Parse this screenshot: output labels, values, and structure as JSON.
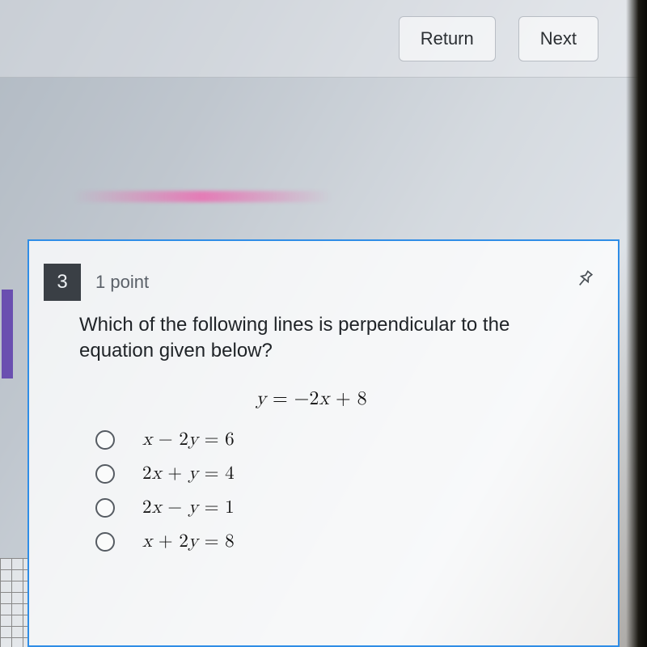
{
  "colors": {
    "card_border": "#2f8de6",
    "qnum_bg": "#3a3f45",
    "qnum_fg": "#eef1f4",
    "text_primary": "#1f2327",
    "text_muted": "#5a6068",
    "radio_border": "#555b62",
    "button_border": "#b8bdc4",
    "button_text": "#2b2f33"
  },
  "topbar": {
    "return_label": "Return",
    "next_label": "Next"
  },
  "question": {
    "number": "3",
    "points_label": "1 point",
    "prompt": "Which of the following lines is perpendicular to the equation given below?",
    "given_equation_html": "<span class='var'>y</span> = −2<span class='var'>x</span> + 8",
    "options": [
      {
        "html": "<span class='var'>x</span> − 2<span class='var'>y</span> = 6"
      },
      {
        "html": "2<span class='var'>x</span> + <span class='var'>y</span> = 4"
      },
      {
        "html": "2<span class='var'>x</span> − <span class='var'>y</span> = 1"
      },
      {
        "html": "<span class='var'>x</span> + 2<span class='var'>y</span> = 8"
      }
    ]
  }
}
